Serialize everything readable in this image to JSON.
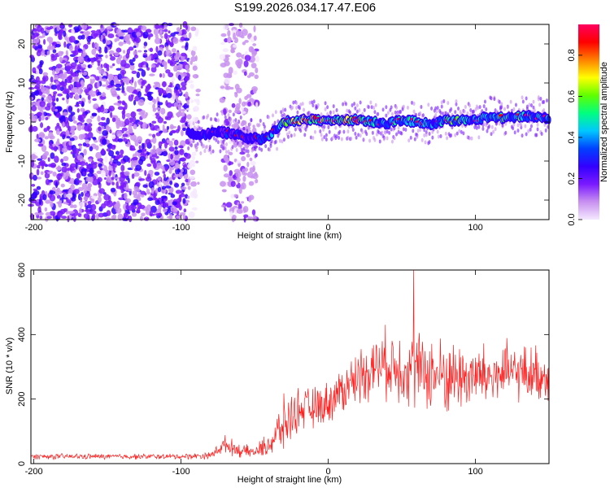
{
  "title": "S199.2026.034.17.47.E06",
  "colors": {
    "snr_line": "#ff2020",
    "axis": "#000000"
  },
  "chart_data": [
    {
      "type": "heatmap",
      "title": "",
      "xlabel": "Height of straight line (km)",
      "ylabel": "Frequency (Hz)",
      "xlim": [
        -202,
        150
      ],
      "ylim": [
        -25,
        25
      ],
      "xticks": [
        -200,
        -100,
        0,
        100
      ],
      "yticks": [
        -20,
        -10,
        0,
        10,
        20
      ],
      "colorbar": {
        "label": "Normalized spectral amplitude",
        "range": [
          0,
          0.95
        ],
        "ticks": [
          "0.0",
          "0.2",
          "0.4",
          "0.6",
          "0.8"
        ],
        "tick_values": [
          0.0,
          0.2,
          0.4,
          0.6,
          0.8
        ],
        "colormap": [
          "#f4e8ff",
          "#c890f0",
          "#7a1aff",
          "#3300ff",
          "#0040ff",
          "#00c8ff",
          "#00ff80",
          "#60ff00",
          "#ffff00",
          "#ff8000",
          "#ff0000",
          "#ff0060"
        ]
      },
      "ridge": {
        "description_free": true,
        "x": [
          -95,
          -85,
          -75,
          -65,
          -55,
          -45,
          -35,
          -30,
          -20,
          -10,
          0,
          10,
          20,
          30,
          40,
          50,
          60,
          70,
          80,
          90,
          100,
          110,
          120,
          130,
          140,
          150
        ],
        "freq": [
          -3,
          -3.5,
          -2.5,
          -3,
          -4,
          -4.5,
          -2,
          0,
          0.5,
          0.5,
          0.3,
          0.5,
          0.5,
          0,
          -0.5,
          0.5,
          0,
          -0.5,
          0.5,
          0.5,
          0.5,
          1.5,
          1,
          1.5,
          1.5,
          1
        ],
        "amp": [
          0.3,
          0.35,
          0.3,
          0.35,
          0.3,
          0.35,
          0.5,
          0.6,
          0.8,
          0.9,
          0.7,
          0.85,
          0.8,
          0.6,
          0.5,
          0.6,
          0.55,
          0.5,
          0.65,
          0.6,
          0.5,
          0.55,
          0.6,
          0.6,
          0.55,
          0.5
        ]
      },
      "noise_regions": [
        {
          "x_range": [
            -202,
            -95
          ],
          "level": 0.2,
          "density": "high"
        },
        {
          "x_range": [
            -95,
            -88
          ],
          "level": 0.05,
          "density": "low"
        },
        {
          "x_range": [
            -72,
            -48
          ],
          "level": 0.12,
          "density": "medium"
        }
      ]
    },
    {
      "type": "line",
      "title": "",
      "xlabel": "Height of straight line (km)",
      "ylabel": "SNR (10 * v/v)",
      "xlim": [
        -202,
        150
      ],
      "ylim": [
        0,
        600
      ],
      "xticks": [
        -200,
        -100,
        0,
        100
      ],
      "yticks": [
        0,
        200,
        400,
        600
      ],
      "series": [
        {
          "name": "SNR",
          "envelope_x": [
            -202,
            -150,
            -100,
            -80,
            -70,
            -60,
            -50,
            -40,
            -30,
            -20,
            -10,
            0,
            10,
            20,
            30,
            40,
            50,
            60,
            70,
            80,
            90,
            100,
            110,
            120,
            130,
            140,
            150
          ],
          "envelope_mean": [
            22,
            22,
            22,
            25,
            60,
            40,
            35,
            60,
            120,
            170,
            170,
            190,
            230,
            270,
            300,
            310,
            300,
            290,
            280,
            270,
            270,
            270,
            270,
            280,
            280,
            280,
            270
          ],
          "envelope_spread": [
            8,
            8,
            8,
            10,
            25,
            20,
            15,
            40,
            80,
            60,
            60,
            60,
            70,
            80,
            90,
            100,
            110,
            110,
            110,
            110,
            100,
            100,
            90,
            90,
            80,
            80,
            80
          ],
          "peak": {
            "x": 58,
            "y": 605
          }
        }
      ]
    }
  ]
}
